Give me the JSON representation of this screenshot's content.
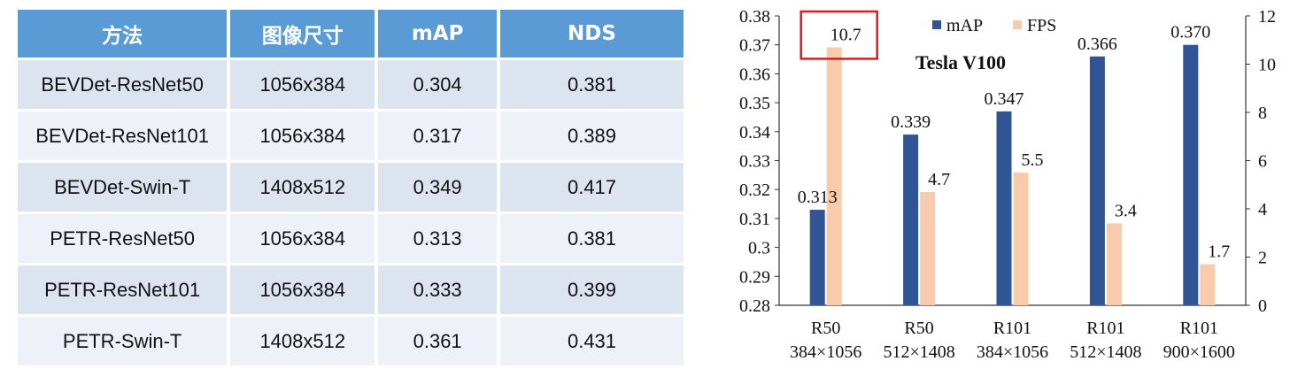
{
  "table": {
    "headers": [
      "方法",
      "图像尺寸",
      "mAP",
      "NDS"
    ],
    "rows": [
      [
        "BEVDet-ResNet50",
        "1056x384",
        "0.304",
        "0.381"
      ],
      [
        "BEVDet-ResNet101",
        "1056x384",
        "0.317",
        "0.389"
      ],
      [
        "BEVDet-Swin-T",
        "1408x512",
        "0.349",
        "0.417"
      ],
      [
        "PETR-ResNet50",
        "1056x384",
        "0.313",
        "0.381"
      ],
      [
        "PETR-ResNet101",
        "1056x384",
        "0.333",
        "0.399"
      ],
      [
        "PETR-Swin-T",
        "1408x512",
        "0.361",
        "0.431"
      ]
    ]
  },
  "chart_data": {
    "type": "bar",
    "title": "Tesla V100",
    "categories": [
      [
        "R50",
        "384×1056"
      ],
      [
        "R50",
        "512×1408"
      ],
      [
        "R101",
        "384×1056"
      ],
      [
        "R101",
        "512×1408"
      ],
      [
        "R101",
        "900×1600"
      ]
    ],
    "series": [
      {
        "name": "mAP",
        "axis": "left",
        "color": "#2f5597",
        "values": [
          0.313,
          0.339,
          0.347,
          0.366,
          0.37
        ],
        "labels": [
          "0.313",
          "0.339",
          "0.347",
          "0.366",
          "0.370"
        ]
      },
      {
        "name": "FPS",
        "axis": "right",
        "color": "#f8cbad",
        "values": [
          10.7,
          4.7,
          5.5,
          3.4,
          1.7
        ],
        "labels": [
          "10.7",
          "4.7",
          "5.5",
          "3.4",
          "1.7"
        ]
      }
    ],
    "y_left": {
      "min": 0.28,
      "max": 0.38,
      "ticks": [
        "0.28",
        "0.29",
        "0.3",
        "0.31",
        "0.32",
        "0.33",
        "0.34",
        "0.35",
        "0.36",
        "0.37",
        "0.38"
      ]
    },
    "y_right": {
      "min": 0,
      "max": 12,
      "ticks": [
        "0",
        "2",
        "4",
        "6",
        "8",
        "10",
        "12"
      ]
    },
    "legend_position": "top",
    "highlight": {
      "series": "FPS",
      "index": 0,
      "color": "#e0191f"
    },
    "grid": false
  }
}
